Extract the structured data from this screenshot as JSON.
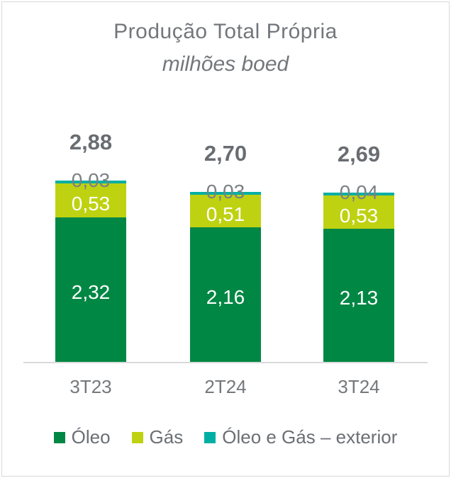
{
  "title": "Produção Total Própria",
  "subtitle": "milhões boed",
  "colors": {
    "oleo": "#008744",
    "gas": "#bed211",
    "exterior": "#00afa4",
    "title_gray": "#73777c",
    "total_gray": "#696d72",
    "segment_label_gray": "#7c8084",
    "segment_label_white": "#ffffff",
    "axis_gray": "#d9d9d9",
    "legend_gray": "#6b6f74",
    "frame_border": "#d9d9d9"
  },
  "chart_data": {
    "type": "bar",
    "stacked": true,
    "title": "Produção Total Própria",
    "subtitle": "milhões boed",
    "unit": "milhões boed",
    "categories": [
      "3T23",
      "2T24",
      "3T24"
    ],
    "series": [
      {
        "name": "Óleo",
        "color": "#008744",
        "values": [
          2.32,
          2.16,
          2.13
        ],
        "labels": [
          "2,32",
          "2,16",
          "2,13"
        ],
        "label_color": "#ffffff"
      },
      {
        "name": "Gás",
        "color": "#bed211",
        "values": [
          0.53,
          0.51,
          0.53
        ],
        "labels": [
          "0,53",
          "0,51",
          "0,53"
        ],
        "label_color": "#ffffff"
      },
      {
        "name": "Óleo e Gás – exterior",
        "color": "#00afa4",
        "values": [
          0.03,
          0.03,
          0.04
        ],
        "labels": [
          "0,03",
          "0,03",
          "0,04"
        ],
        "label_color": "#7c8084"
      }
    ],
    "totals": [
      2.88,
      2.7,
      2.69
    ],
    "total_labels": [
      "2,88",
      "2,70",
      "2,69"
    ],
    "ylim": [
      0,
      3.0
    ],
    "grid": false,
    "legend_position": "bottom",
    "legend_entries": [
      "Óleo",
      "Gás",
      "Óleo e Gás – exterior"
    ]
  }
}
